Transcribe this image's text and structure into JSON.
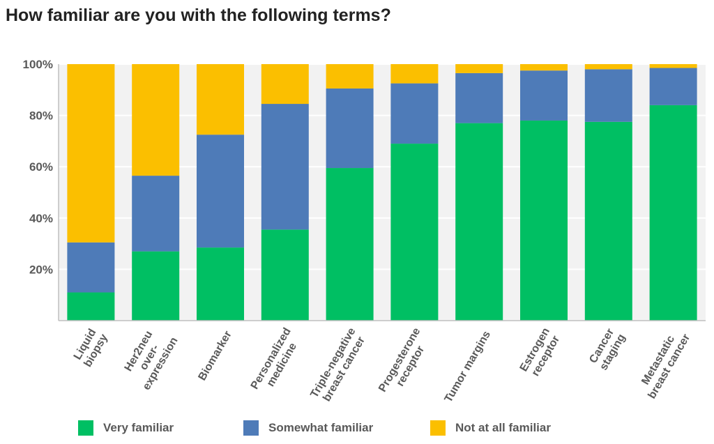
{
  "chart_data": {
    "type": "bar",
    "stacked": true,
    "title": "How familiar are you with the following terms?",
    "xlabel": "",
    "ylabel": "",
    "ylim": [
      0,
      100
    ],
    "yticks": [
      20,
      40,
      60,
      80,
      100
    ],
    "ytick_labels": [
      "20%",
      "40%",
      "60%",
      "80%",
      "100%"
    ],
    "grid": true,
    "legend_position": "bottom",
    "categories": [
      [
        "Liquid",
        "biopsy"
      ],
      [
        "Her2neu",
        "over-",
        "expression"
      ],
      [
        "Biomarker"
      ],
      [
        "Personalized",
        "medicine"
      ],
      [
        "Triple-negative",
        "breast cancer"
      ],
      [
        "Progesterone",
        "receptor"
      ],
      [
        "Tumor margins"
      ],
      [
        "Estrogen",
        "receptor"
      ],
      [
        "Cancer",
        "staging"
      ],
      [
        "Metastatic",
        "breast cancer"
      ]
    ],
    "series": [
      {
        "name": "Very familiar",
        "color": "#00BF63",
        "values": [
          11,
          27,
          28.5,
          35.5,
          59.5,
          69,
          77,
          78,
          77.5,
          84
        ]
      },
      {
        "name": "Somewhat familiar",
        "color": "#4E7BB8",
        "values": [
          19.5,
          29.5,
          44,
          49,
          31,
          23.5,
          19.5,
          19.5,
          20.5,
          14.5
        ]
      },
      {
        "name": "Not at all familiar",
        "color": "#FBBF00",
        "values": [
          69.5,
          43.5,
          27.5,
          15.5,
          9.5,
          7.5,
          3.5,
          2.5,
          2,
          1.5
        ]
      }
    ]
  }
}
